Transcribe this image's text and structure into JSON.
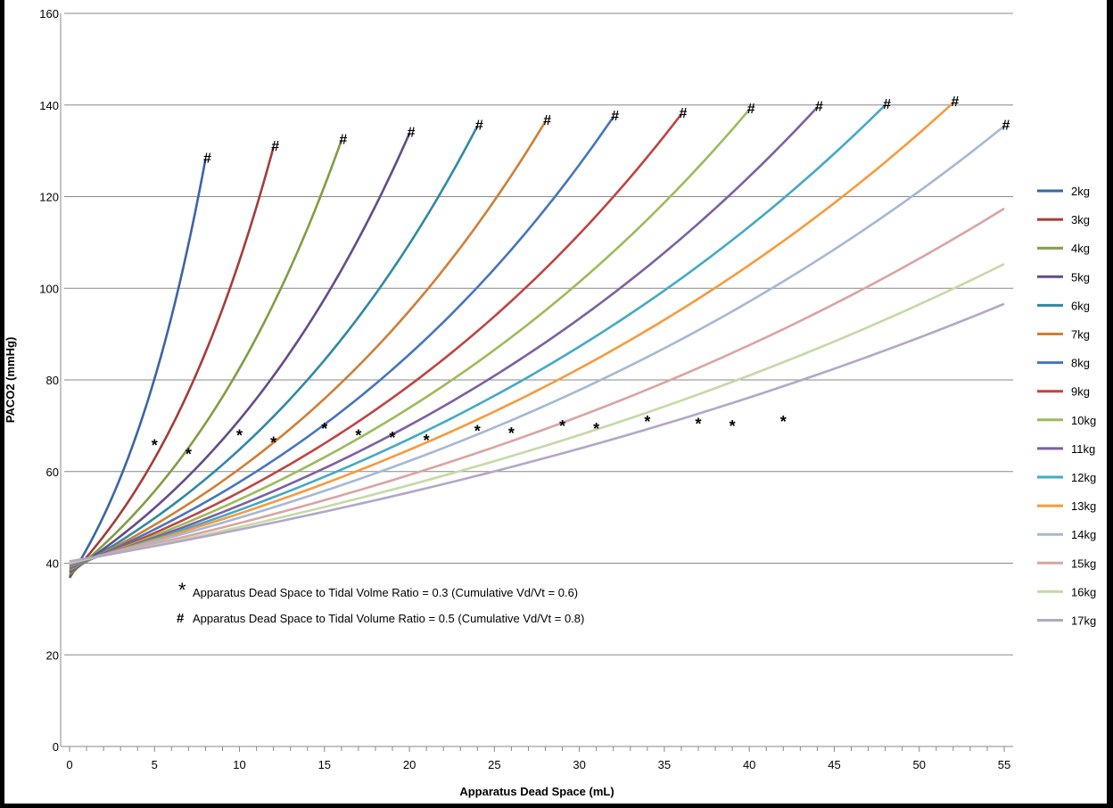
{
  "chart_data": {
    "type": "line",
    "title": "",
    "xlabel": "Apparatus Dead Space (mL)",
    "ylabel": "PACO2 (mmHg)",
    "xlim": [
      0,
      55
    ],
    "ylim": [
      0,
      160
    ],
    "x_ticks": [
      0,
      5,
      10,
      15,
      20,
      25,
      30,
      35,
      40,
      45,
      50,
      55
    ],
    "y_ticks": [
      0,
      20,
      40,
      60,
      80,
      100,
      120,
      140,
      160
    ],
    "grid": "horizontal",
    "legend_position": "right",
    "annotations": [
      {
        "symbol": "*",
        "text": "Apparatus Dead Space to Tidal Volme Ratio = 0.3 (Cumulative Vd/Vt = 0.6)"
      },
      {
        "symbol": "#",
        "text": "Apparatus Dead Space to Tidal Volume Ratio = 0.5 (Cumulative Vd/Vt = 0.8)"
      }
    ],
    "series": [
      {
        "name": "2kg",
        "color": "#3A65A4",
        "start": 36.8,
        "star_x": 5,
        "star_y": 67.1,
        "hash_x": 8,
        "hash_y": 128.2
      },
      {
        "name": "3kg",
        "color": "#A63B38",
        "start": 37.2,
        "star_x": 7,
        "star_y": 65.1,
        "hash_x": 12,
        "hash_y": 130.8
      },
      {
        "name": "4kg",
        "color": "#7F9E43",
        "start": 37.6,
        "star_x": 10,
        "star_y": 69.2,
        "hash_x": 16,
        "hash_y": 132.3
      },
      {
        "name": "5kg",
        "color": "#664A88",
        "start": 38.0,
        "star_x": 12,
        "star_y": 67.6,
        "hash_x": 20,
        "hash_y": 133.8
      },
      {
        "name": "6kg",
        "color": "#2F89A5",
        "start": 38.3,
        "star_x": 15,
        "star_y": 70.7,
        "hash_x": 24,
        "hash_y": 135.4
      },
      {
        "name": "7kg",
        "color": "#D17E35",
        "start": 38.6,
        "star_x": 17,
        "star_y": 69.2,
        "hash_x": 28,
        "hash_y": 136.4
      },
      {
        "name": "8kg",
        "color": "#4675BE",
        "start": 38.9,
        "star_x": 19,
        "star_y": 68.7,
        "hash_x": 32,
        "hash_y": 137.4
      },
      {
        "name": "9kg",
        "color": "#BF4441",
        "start": 39.1,
        "star_x": 21,
        "star_y": 68.1,
        "hash_x": 36,
        "hash_y": 138.0
      },
      {
        "name": "10kg",
        "color": "#9BBB59",
        "start": 39.3,
        "star_x": 24,
        "star_y": 70.2,
        "hash_x": 40,
        "hash_y": 139.0
      },
      {
        "name": "11kg",
        "color": "#7D5FA0",
        "start": 39.5,
        "star_x": 26,
        "star_y": 69.7,
        "hash_x": 44,
        "hash_y": 139.5
      },
      {
        "name": "12kg",
        "color": "#43A9C6",
        "start": 39.7,
        "star_x": 29,
        "star_y": 71.2,
        "hash_x": 48,
        "hash_y": 140.0
      },
      {
        "name": "13kg",
        "color": "#F79A3D",
        "start": 39.9,
        "star_x": 31,
        "star_y": 70.7,
        "hash_x": 52,
        "hash_y": 140.5
      },
      {
        "name": "14kg",
        "color": "#A5B8D5",
        "start": 40.0,
        "star_x": 34,
        "star_y": 72.2,
        "hash_x": 55,
        "hash_y": 135.4
      },
      {
        "name": "15kg",
        "color": "#D9A4A2",
        "start": 40.1,
        "star_x": 37,
        "star_y": 71.7,
        "end_x": 55,
        "end_y": 117.4
      },
      {
        "name": "16kg",
        "color": "#C5D9A6",
        "start": 40.2,
        "star_x": 39,
        "star_y": 71.2,
        "end_x": 55,
        "end_y": 105.3
      },
      {
        "name": "17kg",
        "color": "#B2A7C8",
        "start": 40.4,
        "star_x": 42,
        "star_y": 72.2,
        "end_x": 55,
        "end_y": 96.6
      }
    ]
  }
}
